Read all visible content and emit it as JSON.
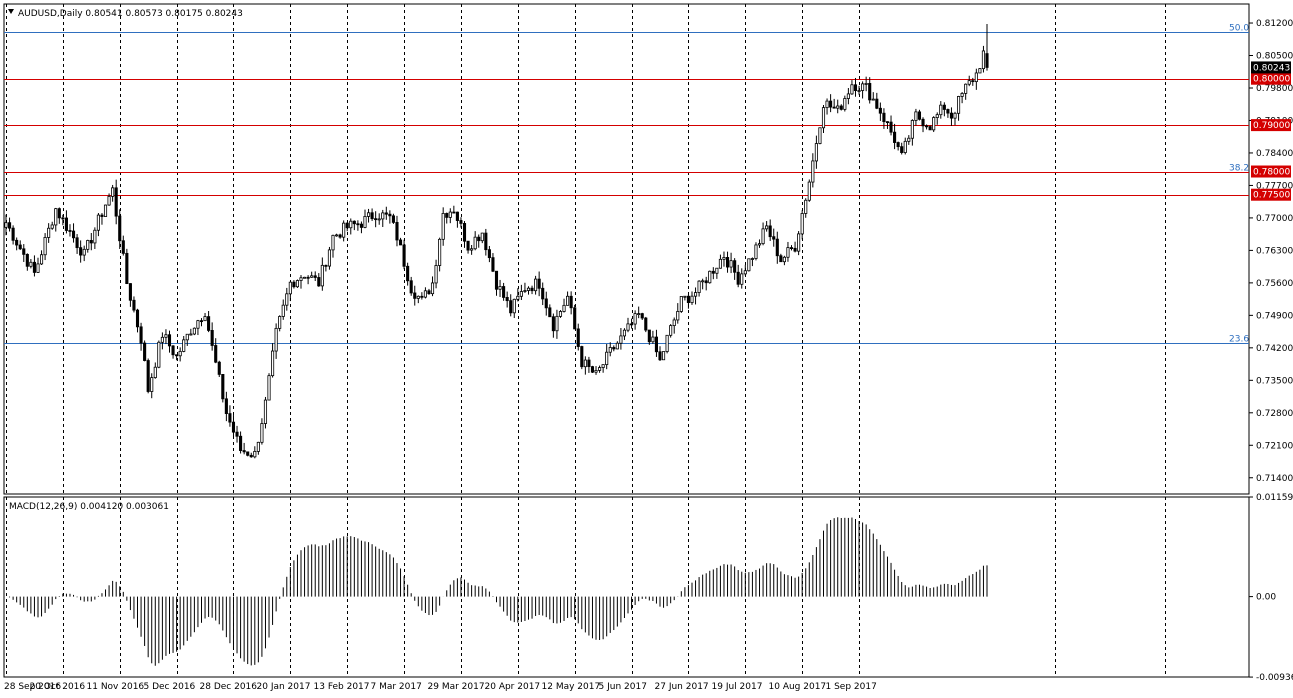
{
  "chart_data": [
    {
      "type": "candlestick",
      "title": "AUDUSD,Daily  0.80541 0.80573 0.80175 0.80243",
      "symbol": "AUDUSD",
      "timeframe": "Daily",
      "ohlc_last": {
        "open": "0.80541",
        "high": "0.80573",
        "low": "0.80175",
        "close": "0.80243"
      },
      "ylim": [
        0.7105,
        0.8161
      ],
      "y_ticks": [
        "0.81200",
        "0.80500",
        "0.79800",
        "0.79100",
        "0.78400",
        "0.77700",
        "0.77000",
        "0.76300",
        "0.75600",
        "0.74900",
        "0.74200",
        "0.73500",
        "0.72800",
        "0.72100",
        "0.71400"
      ],
      "x_ticks": [
        "28 Sep 2016",
        "20 Oct 2016",
        "11 Nov 2016",
        "5 Dec 2016",
        "28 Dec 2016",
        "20 Jan 2017",
        "13 Feb 2017",
        "7 Mar 2017",
        "29 Mar 2017",
        "20 Apr 2017",
        "12 May 2017",
        "5 Jun 2017",
        "27 Jun 2017",
        "19 Jul 2017",
        "10 Aug 2017",
        "1 Sep 2017"
      ],
      "anchors": [
        {
          "i": 0,
          "p": 0.769
        },
        {
          "i": 8,
          "p": 0.758
        },
        {
          "i": 14,
          "p": 0.772
        },
        {
          "i": 22,
          "p": 0.762
        },
        {
          "i": 28,
          "p": 0.773
        },
        {
          "i": 30,
          "p": 0.776
        },
        {
          "i": 34,
          "p": 0.756
        },
        {
          "i": 38,
          "p": 0.744
        },
        {
          "i": 40,
          "p": 0.733
        },
        {
          "i": 44,
          "p": 0.745
        },
        {
          "i": 48,
          "p": 0.74
        },
        {
          "i": 52,
          "p": 0.746
        },
        {
          "i": 56,
          "p": 0.75
        },
        {
          "i": 58,
          "p": 0.742
        },
        {
          "i": 62,
          "p": 0.728
        },
        {
          "i": 66,
          "p": 0.72
        },
        {
          "i": 70,
          "p": 0.719
        },
        {
          "i": 73,
          "p": 0.73
        },
        {
          "i": 76,
          "p": 0.745
        },
        {
          "i": 80,
          "p": 0.756
        },
        {
          "i": 84,
          "p": 0.758
        },
        {
          "i": 88,
          "p": 0.756
        },
        {
          "i": 92,
          "p": 0.766
        },
        {
          "i": 96,
          "p": 0.768
        },
        {
          "i": 100,
          "p": 0.769
        },
        {
          "i": 104,
          "p": 0.771
        },
        {
          "i": 108,
          "p": 0.77
        },
        {
          "i": 110,
          "p": 0.766
        },
        {
          "i": 114,
          "p": 0.755
        },
        {
          "i": 117,
          "p": 0.752
        },
        {
          "i": 120,
          "p": 0.756
        },
        {
          "i": 123,
          "p": 0.771
        },
        {
          "i": 126,
          "p": 0.772
        },
        {
          "i": 130,
          "p": 0.764
        },
        {
          "i": 134,
          "p": 0.767
        },
        {
          "i": 138,
          "p": 0.756
        },
        {
          "i": 142,
          "p": 0.75
        },
        {
          "i": 146,
          "p": 0.755
        },
        {
          "i": 150,
          "p": 0.756
        },
        {
          "i": 154,
          "p": 0.747
        },
        {
          "i": 158,
          "p": 0.753
        },
        {
          "i": 162,
          "p": 0.739
        },
        {
          "i": 166,
          "p": 0.736
        },
        {
          "i": 170,
          "p": 0.741
        },
        {
          "i": 174,
          "p": 0.745
        },
        {
          "i": 178,
          "p": 0.749
        },
        {
          "i": 182,
          "p": 0.743
        },
        {
          "i": 184,
          "p": 0.739
        },
        {
          "i": 186,
          "p": 0.744
        },
        {
          "i": 190,
          "p": 0.752
        },
        {
          "i": 194,
          "p": 0.754
        },
        {
          "i": 198,
          "p": 0.758
        },
        {
          "i": 202,
          "p": 0.762
        },
        {
          "i": 206,
          "p": 0.757
        },
        {
          "i": 210,
          "p": 0.762
        },
        {
          "i": 214,
          "p": 0.768
        },
        {
          "i": 218,
          "p": 0.761
        },
        {
          "i": 222,
          "p": 0.764
        },
        {
          "i": 226,
          "p": 0.778
        },
        {
          "i": 230,
          "p": 0.795
        },
        {
          "i": 234,
          "p": 0.793
        },
        {
          "i": 238,
          "p": 0.799
        },
        {
          "i": 242,
          "p": 0.798
        },
        {
          "i": 246,
          "p": 0.793
        },
        {
          "i": 250,
          "p": 0.787
        },
        {
          "i": 252,
          "p": 0.783
        },
        {
          "i": 256,
          "p": 0.792
        },
        {
          "i": 260,
          "p": 0.79
        },
        {
          "i": 264,
          "p": 0.794
        },
        {
          "i": 266,
          "p": 0.792
        },
        {
          "i": 270,
          "p": 0.798
        },
        {
          "i": 273,
          "p": 0.801
        },
        {
          "i": 275,
          "p": 0.8054
        },
        {
          "i": 276,
          "p": 0.8024
        }
      ]
    },
    {
      "type": "histogram",
      "title": "MACD(12,26,9) 0.004120 0.003061",
      "indicator": "MACD(12,26,9)",
      "values_text": "0.004120 0.003061",
      "ylim": [
        -0.00936,
        0.011597
      ],
      "y_ticks": [
        "0.011597",
        "0.00",
        "-0.009369"
      ]
    }
  ],
  "horizontal_lines": [
    {
      "price": 0.8,
      "label": "0.80000",
      "color": "#d40000"
    },
    {
      "price": 0.79,
      "label": "0.79000",
      "color": "#d40000"
    },
    {
      "price": 0.78,
      "label": "0.78000",
      "color": "#d40000"
    },
    {
      "price": 0.775,
      "label": "0.77500",
      "color": "#d40000"
    }
  ],
  "fib_levels": [
    {
      "price": 0.81,
      "label": "50.0"
    },
    {
      "price": 0.78,
      "label": "38.2"
    },
    {
      "price": 0.7431,
      "label": "23.6"
    }
  ],
  "current_price": {
    "price": 0.80243,
    "label": "0.80243"
  },
  "colors": {
    "bull": "#ffffff",
    "bear": "#000000",
    "line": "#000000",
    "hline": "#d40000",
    "fib": "#2f6fbf"
  }
}
